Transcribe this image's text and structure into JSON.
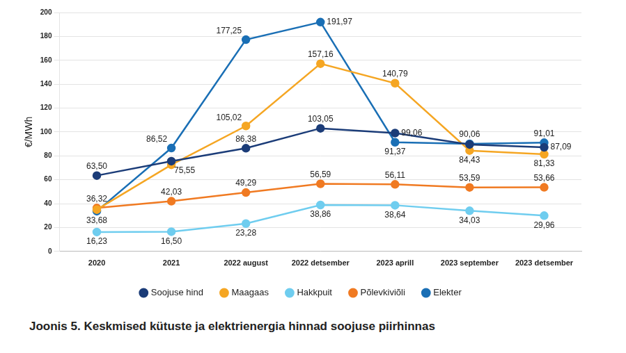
{
  "chart_data": {
    "type": "line",
    "title": "Joonis 5. Keskmised kütuste ja elektrienergia hinnad soojuse piirhinnas",
    "y_label": "€/MWh",
    "categories": [
      "2020",
      "2021",
      "2022 august",
      "2022 detsember",
      "2023 aprill",
      "2023 september",
      "2023 detsember"
    ],
    "ylim": [
      0,
      200
    ],
    "yticks": [
      0,
      20,
      40,
      60,
      80,
      100,
      120,
      140,
      160,
      180,
      200
    ],
    "grid": true,
    "legend": "bottom",
    "data_labels": true,
    "marker": "circle",
    "series": [
      {
        "name": "Soojuse hind",
        "color": "#1b3c78",
        "values": [
          63.5,
          75.55,
          86.38,
          103.05,
          99.06,
          89.5,
          87.09
        ],
        "value_labels": [
          "63,50",
          "75,55",
          "86,38",
          "103,05",
          "99,06",
          null,
          "87,09"
        ]
      },
      {
        "name": "Maagaas",
        "color": "#f5a623",
        "values": [
          35,
          72.5,
          105.02,
          157.16,
          140.79,
          84.43,
          81.33
        ],
        "value_labels": [
          null,
          null,
          "105,02",
          "157,16",
          "140,79",
          "84,43",
          "81,33"
        ]
      },
      {
        "name": "Hakkpuit",
        "color": "#6fcdef",
        "values": [
          16.23,
          16.5,
          23.28,
          38.86,
          38.64,
          34.03,
          29.96
        ],
        "value_labels": [
          "16,23",
          "16,50",
          "23,28",
          "38,86",
          "38,64",
          "34,03",
          "29,96"
        ]
      },
      {
        "name": "Põlevkiviõli",
        "color": "#f07a22",
        "values": [
          36.32,
          42.03,
          49.29,
          56.59,
          56.11,
          53.59,
          53.66
        ],
        "value_labels": [
          "36,32",
          "42,03",
          "49,29",
          "56,59",
          "56,11",
          "53,59",
          "53,66"
        ]
      },
      {
        "name": "Elekter",
        "color": "#1a6fb5",
        "values": [
          33.68,
          86.52,
          177.25,
          191.97,
          91.37,
          90.06,
          91.01
        ],
        "value_labels": [
          "33,68",
          "86,52",
          "177,25",
          "191,97",
          "91,37",
          "90,06",
          "91,01"
        ]
      }
    ]
  }
}
